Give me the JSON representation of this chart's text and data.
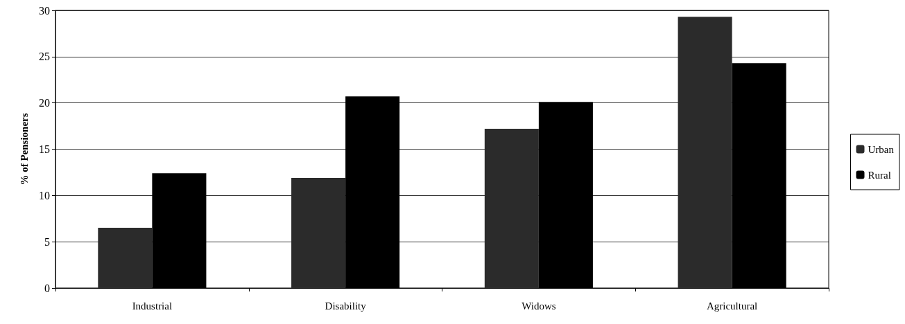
{
  "chart_data": {
    "type": "bar",
    "ylabel": "% of Pensioners",
    "categories": [
      "Industrial",
      "Disability",
      "Widows",
      "Agricultural"
    ],
    "series": [
      {
        "name": "Urban",
        "color": "#2b2b2b",
        "values": [
          6.5,
          11.9,
          17.2,
          29.3
        ]
      },
      {
        "name": "Rural",
        "color": "#000000",
        "values": [
          12.4,
          20.7,
          20.1,
          24.3
        ]
      }
    ],
    "ylim": [
      0,
      30
    ],
    "yticks": [
      0,
      5,
      10,
      15,
      20,
      25,
      30
    ],
    "grid": "y",
    "legend": "right"
  }
}
